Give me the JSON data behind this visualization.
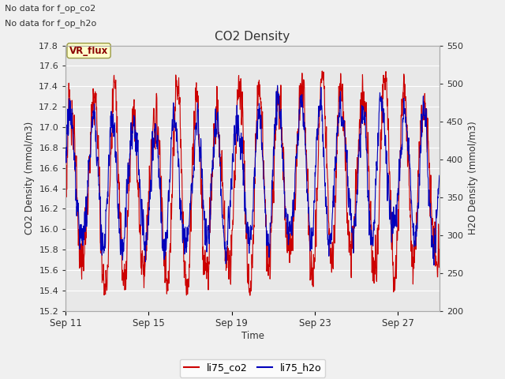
{
  "title": "CO2 Density",
  "xlabel": "Time",
  "ylabel_left": "CO2 Density (mmol/m3)",
  "ylabel_right": "H2O Density (mmol/m3)",
  "top_text_1": "No data for f_op_co2",
  "top_text_2": "No data for f_op_h2o",
  "vr_flux_label": "VR_flux",
  "ylim_left": [
    15.2,
    17.8
  ],
  "ylim_right": [
    200,
    550
  ],
  "yticks_left": [
    15.2,
    15.4,
    15.6,
    15.8,
    16.0,
    16.2,
    16.4,
    16.6,
    16.8,
    17.0,
    17.2,
    17.4,
    17.6,
    17.8
  ],
  "yticks_right": [
    200,
    250,
    300,
    350,
    400,
    450,
    500,
    550
  ],
  "xtick_labels": [
    "Sep 11",
    "Sep 15",
    "Sep 19",
    "Sep 23",
    "Sep 27"
  ],
  "xtick_positions": [
    0,
    4,
    8,
    12,
    16
  ],
  "xlim": [
    0,
    18
  ],
  "fig_bg_color": "#f0f0f0",
  "plot_bg_color": "#e8e8e8",
  "grid_color": "#ffffff",
  "line_co2_color": "#cc0000",
  "line_h2o_color": "#0000bb",
  "legend_labels": [
    "li75_co2",
    "li75_h2o"
  ],
  "n_days": 18,
  "seed": 123
}
